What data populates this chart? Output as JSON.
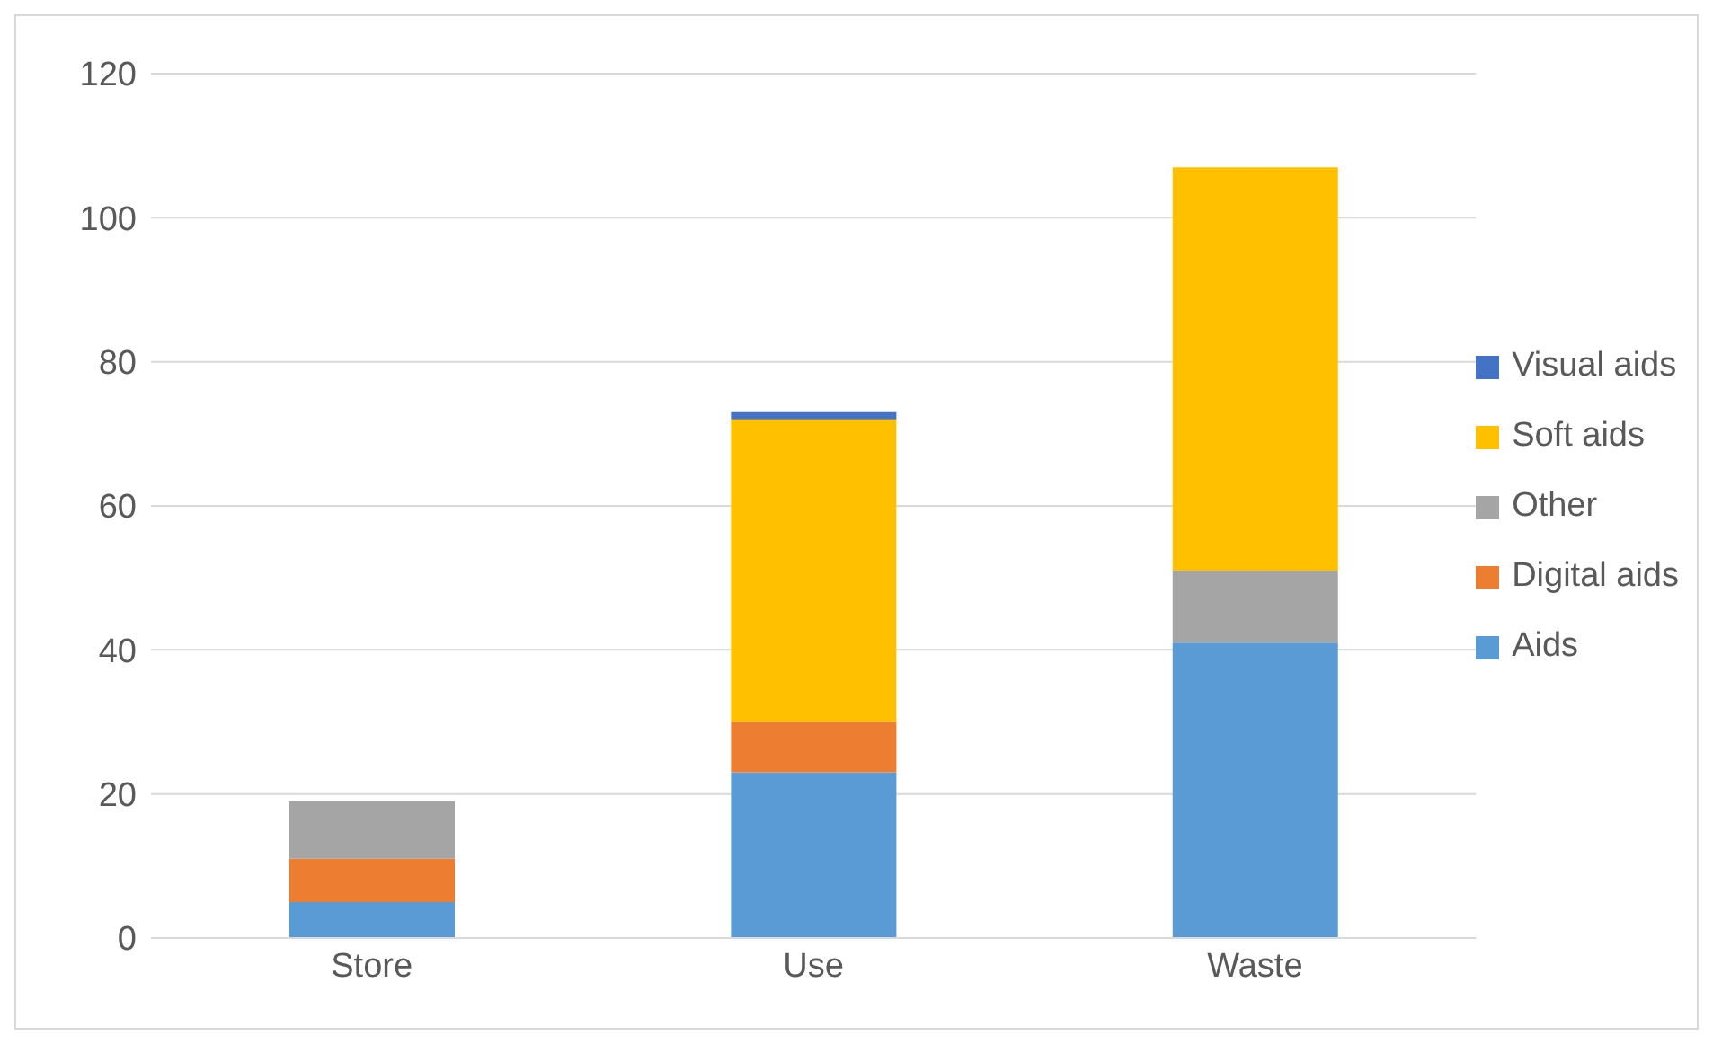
{
  "chart_data": {
    "type": "bar",
    "stacked": true,
    "categories": [
      "Store",
      "Use",
      "Waste"
    ],
    "series": [
      {
        "name": "Aids",
        "color": "#5b9bd5",
        "values": [
          5,
          23,
          41
        ]
      },
      {
        "name": "Digital aids",
        "color": "#ed7d31",
        "values": [
          6,
          7,
          null
        ]
      },
      {
        "name": "Other",
        "color": "#a5a5a5",
        "values": [
          8,
          null,
          10
        ]
      },
      {
        "name": "Soft aids",
        "color": "#ffc000",
        "values": [
          null,
          42,
          56
        ]
      },
      {
        "name": "Visual aids",
        "color": "#4472c4",
        "values": [
          null,
          1,
          null
        ]
      }
    ],
    "ylim": [
      0,
      120
    ],
    "yticks": [
      0,
      20,
      40,
      60,
      80,
      100,
      120
    ],
    "grid": "y",
    "legend": "right"
  }
}
